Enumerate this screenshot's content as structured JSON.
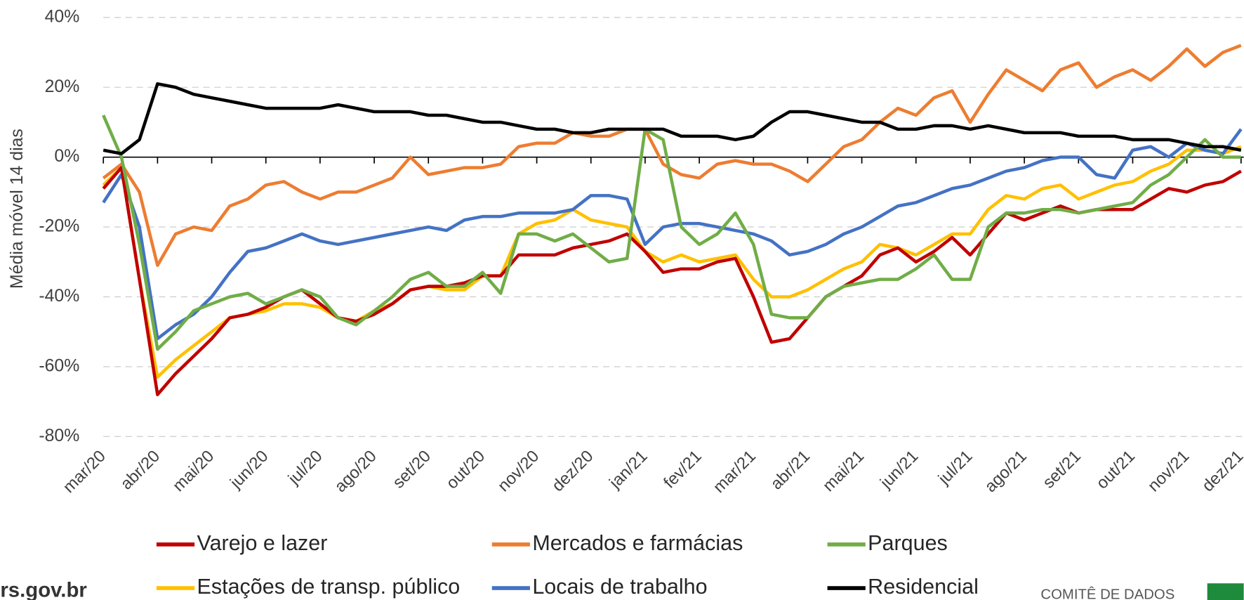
{
  "chart_data": {
    "type": "line",
    "ylabel": "Média móvel 14 dias",
    "categories": [
      "mar/20",
      null,
      null,
      "abr/20",
      null,
      null,
      "mai/20",
      null,
      null,
      "jun/20",
      null,
      null,
      "jul/20",
      null,
      null,
      "ago/20",
      null,
      null,
      "set/20",
      null,
      null,
      "out/20",
      null,
      null,
      "nov/20",
      null,
      null,
      "dez/20",
      null,
      null,
      "jan/21",
      null,
      null,
      "fev/21",
      null,
      null,
      "mar/21",
      null,
      null,
      "abr/21",
      null,
      null,
      "mai/21",
      null,
      null,
      "jun/21",
      null,
      null,
      "jul/21",
      null,
      null,
      "ago/21",
      null,
      null,
      "set/21",
      null,
      null,
      "out/21",
      null,
      null,
      "nov/21",
      null,
      null,
      "dez/21"
    ],
    "series": [
      {
        "name": "Varejo e lazer",
        "color": "#c00000",
        "values": [
          -9,
          -3,
          -35,
          -68,
          -62,
          -57,
          -52,
          -46,
          -45,
          -43,
          -40,
          -38,
          -42,
          -46,
          -47,
          -45,
          -42,
          -38,
          -37,
          -37,
          -36,
          -34,
          -34,
          -28,
          -28,
          -28,
          -26,
          -25,
          -24,
          -22,
          -27,
          -33,
          -32,
          -32,
          -30,
          -29,
          -40,
          -53,
          -52,
          -46,
          -40,
          -37,
          -34,
          -28,
          -26,
          -30,
          -27,
          -23,
          -28,
          -22,
          -16,
          -18,
          -16,
          -14,
          -16,
          -15,
          -15,
          -15,
          -12,
          -9,
          -10,
          -8,
          -7,
          -4
        ]
      },
      {
        "name": "Mercados e farmácias",
        "color": "#ed7d31",
        "values": [
          -6,
          -2,
          -10,
          -31,
          -22,
          -20,
          -21,
          -14,
          -12,
          -8,
          -7,
          -10,
          -12,
          -10,
          -10,
          -8,
          -6,
          0,
          -5,
          -4,
          -3,
          -3,
          -2,
          3,
          4,
          4,
          7,
          6,
          6,
          8,
          8,
          -2,
          -5,
          -6,
          -2,
          -1,
          -2,
          -2,
          -4,
          -7,
          -2,
          3,
          5,
          10,
          14,
          12,
          17,
          19,
          10,
          18,
          25,
          22,
          19,
          25,
          27,
          20,
          23,
          25,
          22,
          26,
          31,
          26,
          30,
          32
        ]
      },
      {
        "name": "Parques",
        "color": "#70ad47",
        "values": [
          12,
          0,
          -25,
          -55,
          -50,
          -44,
          -42,
          -40,
          -39,
          -42,
          -40,
          -38,
          -40,
          -46,
          -48,
          -44,
          -40,
          -35,
          -33,
          -37,
          -37,
          -33,
          -39,
          -22,
          -22,
          -24,
          -22,
          -26,
          -30,
          -29,
          8,
          5,
          -20,
          -25,
          -22,
          -16,
          -25,
          -45,
          -46,
          -46,
          -40,
          -37,
          -36,
          -35,
          -35,
          -32,
          -28,
          -35,
          -35,
          -20,
          -16,
          -16,
          -15,
          -15,
          -16,
          -15,
          -14,
          -13,
          -8,
          -5,
          0,
          5,
          0,
          0
        ]
      },
      {
        "name": "Estações de transp. público",
        "color": "#ffc000",
        "values": [
          -8,
          -3,
          -35,
          -63,
          -58,
          -54,
          -50,
          -46,
          -45,
          -44,
          -42,
          -42,
          -43,
          -46,
          -47,
          -44,
          -42,
          -38,
          -37,
          -38,
          -38,
          -34,
          -34,
          -22,
          -19,
          -18,
          -15,
          -18,
          -19,
          -20,
          -27,
          -30,
          -28,
          -30,
          -29,
          -28,
          -35,
          -40,
          -40,
          -38,
          -35,
          -32,
          -30,
          -25,
          -26,
          -28,
          -25,
          -22,
          -22,
          -15,
          -11,
          -12,
          -9,
          -8,
          -12,
          -10,
          -8,
          -7,
          -4,
          -2,
          2,
          2,
          1,
          3
        ]
      },
      {
        "name": "Locais de trabalho",
        "color": "#4472c4",
        "values": [
          -13,
          -5,
          -20,
          -52,
          -48,
          -45,
          -40,
          -33,
          -27,
          -26,
          -24,
          -22,
          -24,
          -25,
          -24,
          -23,
          -22,
          -21,
          -20,
          -21,
          -18,
          -17,
          -17,
          -16,
          -16,
          -16,
          -15,
          -11,
          -11,
          -12,
          -25,
          -20,
          -19,
          -19,
          -20,
          -21,
          -22,
          -24,
          -28,
          -27,
          -25,
          -22,
          -20,
          -17,
          -14,
          -13,
          -11,
          -9,
          -8,
          -6,
          -4,
          -3,
          -1,
          0,
          0,
          -5,
          -6,
          2,
          3,
          0,
          4,
          2,
          1,
          8
        ]
      },
      {
        "name": "Residencial",
        "color": "#000000",
        "values": [
          2,
          1,
          5,
          21,
          20,
          18,
          17,
          16,
          15,
          14,
          14,
          14,
          14,
          15,
          14,
          13,
          13,
          13,
          12,
          12,
          11,
          10,
          10,
          9,
          8,
          8,
          7,
          7,
          8,
          8,
          8,
          8,
          6,
          6,
          6,
          5,
          6,
          10,
          13,
          13,
          12,
          11,
          10,
          10,
          8,
          8,
          9,
          9,
          8,
          9,
          8,
          7,
          7,
          7,
          6,
          6,
          6,
          5,
          5,
          5,
          4,
          3,
          3,
          2
        ]
      }
    ],
    "ylim": [
      -80,
      40
    ],
    "yticks": [
      {
        "value": -80,
        "label": "-80%"
      },
      {
        "value": -60,
        "label": "-60%"
      },
      {
        "value": -40,
        "label": "-40%"
      },
      {
        "value": -20,
        "label": "-20%"
      },
      {
        "value": 0,
        "label": "0%"
      },
      {
        "value": 20,
        "label": "20%"
      },
      {
        "value": 40,
        "label": "40%"
      }
    ],
    "grid": true
  },
  "footer": {
    "site": "rs.gov.br",
    "org": "COMITÊ DE DADOS"
  }
}
